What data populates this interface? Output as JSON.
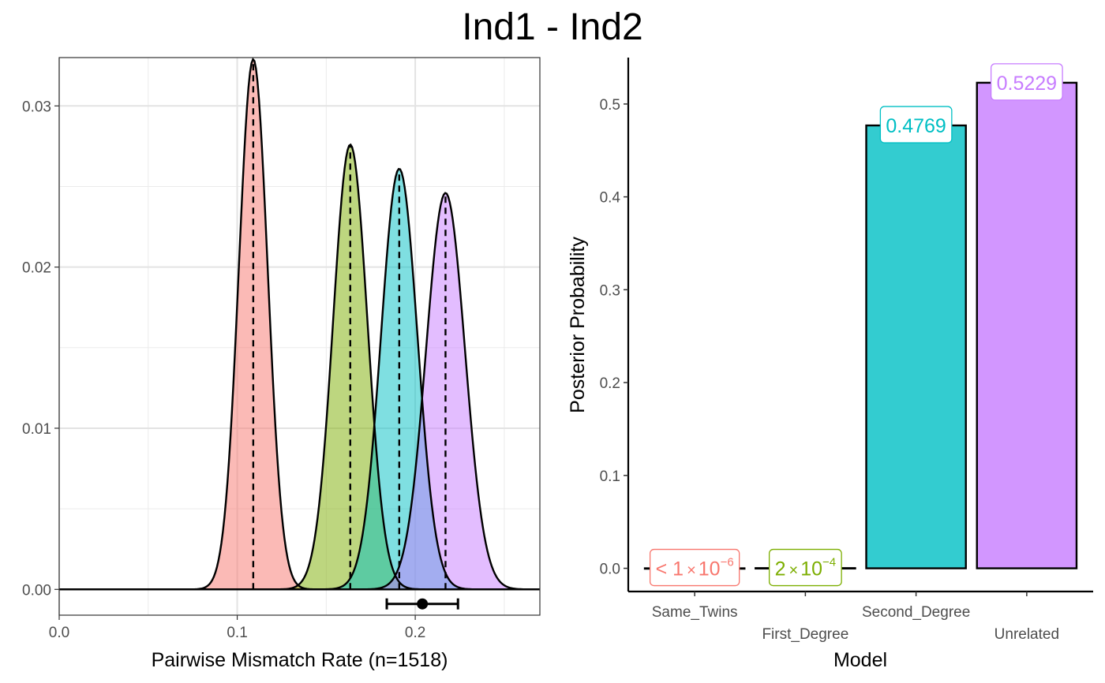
{
  "title": "Ind1 - Ind2",
  "colors": {
    "Same_Twins": "#F8766D",
    "First_Degree": "#7CAE00",
    "Second_Degree": "#00BFC4",
    "Unrelated": "#C77CFF"
  },
  "chart_data": [
    {
      "type": "area",
      "xlabel": "Pairwise Mismatch Rate (n=1518)",
      "ylabel": "",
      "xlim": [
        0.0,
        0.27
      ],
      "ylim": [
        -0.0016,
        0.033
      ],
      "x_ticks": [
        "0.0",
        "0.1",
        "0.2"
      ],
      "y_ticks": [
        "0.00",
        "0.01",
        "0.02",
        "0.03"
      ],
      "grid": true,
      "series": [
        {
          "key": "Same_Twins",
          "mean": 0.109,
          "sd": 0.0081,
          "peak": 0.0329
        },
        {
          "key": "First_Degree",
          "mean": 0.1635,
          "sd": 0.0096,
          "peak": 0.0276
        },
        {
          "key": "Second_Degree",
          "mean": 0.191,
          "sd": 0.0102,
          "peak": 0.0261
        },
        {
          "key": "Unrelated",
          "mean": 0.217,
          "sd": 0.0109,
          "peak": 0.0246
        }
      ],
      "observed": {
        "estimate": 0.204,
        "ci_low": 0.184,
        "ci_high": 0.224,
        "y": -0.0009
      }
    },
    {
      "type": "bar",
      "xlabel": "Model",
      "ylabel": "Posterior Probability",
      "ylim": [
        -0.025,
        0.55
      ],
      "y_ticks": [
        "0.0",
        "0.1",
        "0.2",
        "0.3",
        "0.4",
        "0.5"
      ],
      "categories": [
        "Same_Twins",
        "First_Degree",
        "Second_Degree",
        "Unrelated"
      ],
      "values": [
        1e-06,
        0.0002,
        0.4769,
        0.5229
      ],
      "labels": [
        {
          "pre": "< 1",
          "times": "×",
          "base": "10",
          "exp": "−6"
        },
        {
          "pre": "2",
          "times": "×",
          "base": "10",
          "exp": "−4"
        },
        {
          "pre": "0.4769",
          "times": "",
          "base": "",
          "exp": ""
        },
        {
          "pre": "0.5229",
          "times": "",
          "base": "",
          "exp": ""
        }
      ]
    }
  ]
}
